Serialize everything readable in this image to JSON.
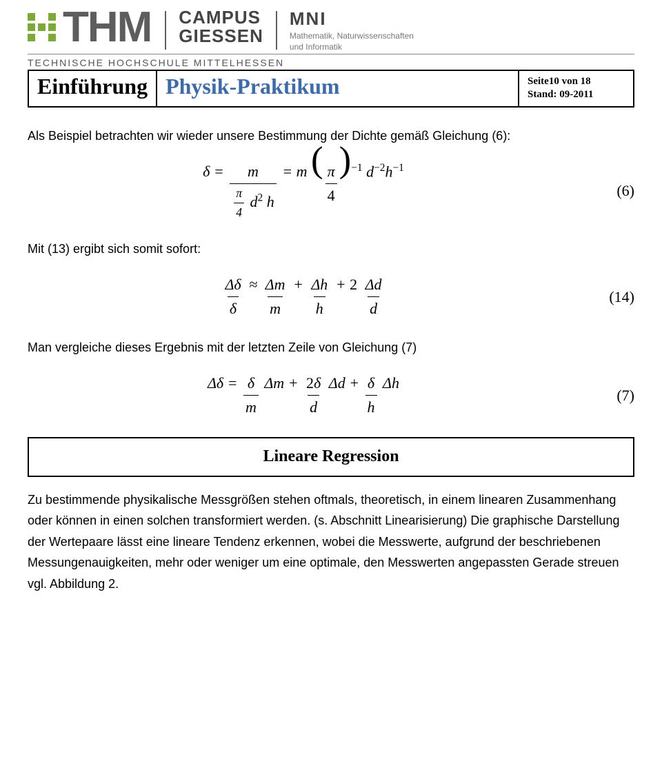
{
  "header": {
    "thm": "THM",
    "subline": "TECHNISCHE HOCHSCHULE MITTELHESSEN",
    "campus_l1": "CAMPUS",
    "campus_l2": "GIESSEN",
    "mni": "MNI",
    "mni_sub1": "Mathematik, Naturwissenschaften",
    "mni_sub2": "und Informatik"
  },
  "title": {
    "left": "Einführung",
    "mid": "Physik-Praktikum",
    "right_l1": "Seite10 von 18",
    "right_l2": "Stand: 09-2011"
  },
  "text": {
    "p1": "Als Beispiel betrachten wir wieder unsere Bestimmung der Dichte gemäß Gleichung (6):",
    "p2": "Mit (13) ergibt sich somit sofort:",
    "p3": "Man vergleiche dieses Ergebnis mit der letzten Zeile von Gleichung (7)",
    "section": "Lineare Regression",
    "p4": "Zu bestimmende physikalische Messgrößen stehen oftmals, theoretisch, in einem linearen Zusammenhang oder können in einen solchen transformiert werden. (s. Abschnitt Linearisierung) Die graphische Darstellung der Wertepaare lässt eine lineare Tendenz erkennen, wobei die Messwerte, aufgrund der beschriebenen Messungenauigkeiten, mehr oder weniger um eine optimale, den Messwerten angepassten Gerade streuen vgl. Abbildung 2."
  },
  "eq": {
    "n6": "(6)",
    "n14": "(14)",
    "n7": "(7)"
  },
  "colors": {
    "accent_green": "#7fa83b",
    "title_blue": "#3f6aa8",
    "header_gray": "#5d5d5d",
    "text": "#000000",
    "bg": "#ffffff"
  }
}
